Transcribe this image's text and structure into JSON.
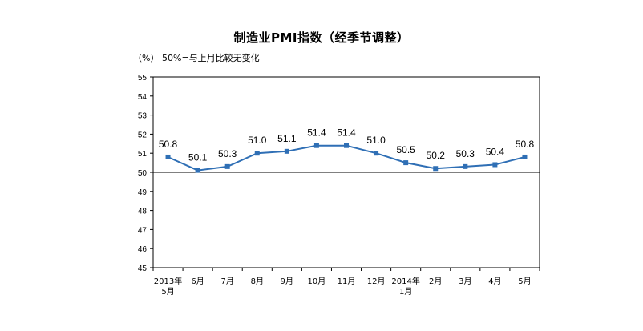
{
  "chart_data": {
    "type": "line",
    "title": "制造业PMI指数（经季节调整）",
    "unit_label": "（%）",
    "reference_note": "50%=与上月比较无变化",
    "categories": [
      [
        "2013年",
        "5月"
      ],
      [
        "6月"
      ],
      [
        "7月"
      ],
      [
        "8月"
      ],
      [
        "9月"
      ],
      [
        "10月"
      ],
      [
        "11月"
      ],
      [
        "12月"
      ],
      [
        "2014年",
        "1月"
      ],
      [
        "2月"
      ],
      [
        "3月"
      ],
      [
        "4月"
      ],
      [
        "5月"
      ]
    ],
    "series": [
      {
        "values": [
          50.8,
          50.1,
          50.3,
          51.0,
          51.1,
          51.4,
          51.4,
          51.0,
          50.5,
          50.2,
          50.3,
          50.4,
          50.8
        ],
        "data_labels": [
          "50.8",
          "50.1",
          "50.3",
          "51.0",
          "51.1",
          "51.4",
          "51.4",
          "51.0",
          "50.5",
          "50.2",
          "50.3",
          "50.4",
          "50.8"
        ],
        "color": "#2f6fb5"
      }
    ],
    "ylim": [
      45,
      55
    ],
    "yticks": [
      "45",
      "46",
      "47",
      "48",
      "49",
      "50",
      "51",
      "52",
      "53",
      "54",
      "55"
    ],
    "reference_line": 50,
    "grid": false,
    "legend": "none"
  }
}
